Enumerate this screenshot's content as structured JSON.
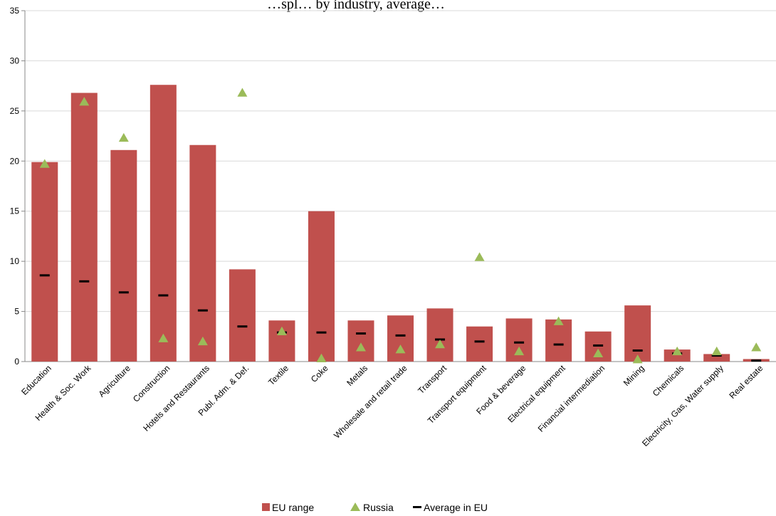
{
  "chart_data": {
    "type": "bar",
    "title": "…spl… by industry, average…",
    "categories": [
      "Education",
      "Health & Soc. Work",
      "Agriculture",
      "Construction",
      "Hotels and Restaurants",
      "Publ. Adm. & Def.",
      "Textile",
      "Coke",
      "Metals",
      "Wholesale and retail trade",
      "Transport",
      "Transport equipment",
      "Food & beverage",
      "Electrical equipment",
      "Financial intermediation",
      "Mining",
      "Chemicals",
      "Electricity, Gas, Water supply",
      "Real estate"
    ],
    "series": [
      {
        "name": "EU range",
        "type": "bar",
        "color": "#c0504d",
        "values": [
          19.9,
          26.8,
          21.1,
          27.6,
          21.6,
          9.2,
          4.1,
          15.0,
          4.1,
          4.6,
          5.3,
          3.5,
          4.3,
          4.2,
          3.0,
          5.6,
          1.2,
          0.75,
          0.25
        ]
      },
      {
        "name": "Russia",
        "type": "marker-triangle",
        "color": "#9bbb59",
        "values": [
          19.7,
          25.9,
          22.3,
          2.3,
          2.0,
          26.8,
          3.0,
          0.3,
          1.4,
          1.2,
          1.7,
          10.4,
          1.0,
          4.0,
          0.8,
          0.2,
          1.0,
          1.0,
          1.4
        ]
      },
      {
        "name": "Average in EU",
        "type": "marker-dash",
        "color": "#000000",
        "values": [
          8.6,
          8.0,
          6.9,
          6.6,
          5.1,
          3.5,
          2.9,
          2.9,
          2.8,
          2.6,
          2.2,
          2.0,
          1.9,
          1.7,
          1.6,
          1.1,
          0.8,
          0.6,
          0.1
        ]
      }
    ],
    "ylim": [
      0,
      35
    ],
    "yticks": [
      0,
      5,
      10,
      15,
      20,
      25,
      30,
      35
    ],
    "grid": true,
    "legend": "bottom"
  }
}
